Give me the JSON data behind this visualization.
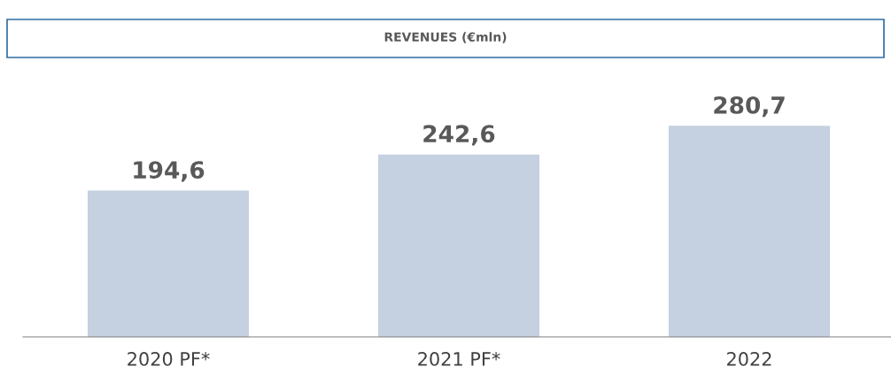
{
  "chart_data": {
    "type": "bar",
    "title": "REVENUES (€mln)",
    "categories": [
      "2020 PF*",
      "2021 PF*",
      "2022"
    ],
    "values": [
      194.6,
      242.6,
      280.7
    ],
    "color": "#c5d0e0",
    "value_labels": [
      "194,6",
      "242,6",
      "280,7"
    ],
    "grid": false,
    "legend": false
  }
}
